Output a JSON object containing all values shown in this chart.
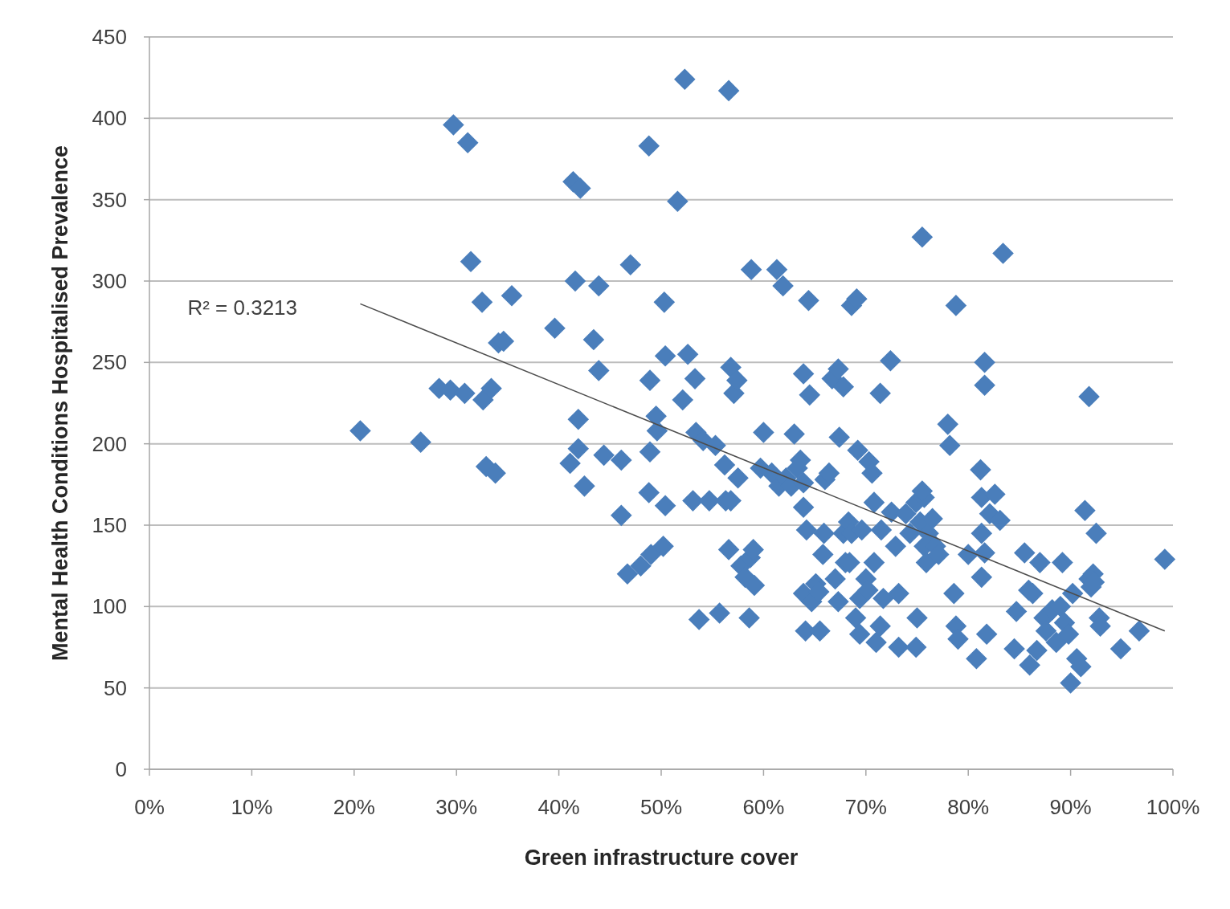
{
  "chart_data": {
    "type": "scatter",
    "xlabel": "Green infrastructure cover",
    "ylabel": "Mental Health Conditions Hospitalised Prevalence",
    "xlim": [
      0,
      100
    ],
    "ylim": [
      0,
      450
    ],
    "xticks": [
      {
        "value": 0,
        "label": "0%"
      },
      {
        "value": 10,
        "label": "10%"
      },
      {
        "value": 20,
        "label": "20%"
      },
      {
        "value": 30,
        "label": "30%"
      },
      {
        "value": 40,
        "label": "40%"
      },
      {
        "value": 50,
        "label": "50%"
      },
      {
        "value": 60,
        "label": "60%"
      },
      {
        "value": 70,
        "label": "70%"
      },
      {
        "value": 80,
        "label": "80%"
      },
      {
        "value": 90,
        "label": "90%"
      },
      {
        "value": 100,
        "label": "100%"
      }
    ],
    "yticks": [
      0,
      50,
      100,
      150,
      200,
      250,
      300,
      350,
      400,
      450
    ],
    "grid": "y",
    "marker": "diamond",
    "annotations": [
      "R² = 0.3213"
    ],
    "series": [
      {
        "color": "#4a7ebb",
        "x": [
          20.6,
          26.5,
          28.3,
          29.4,
          29.7,
          30.8,
          31.1,
          31.4,
          32.5,
          32.6,
          32.9,
          33.4,
          33.8,
          34.1,
          34.6,
          35.4,
          39.6,
          41.4,
          41.6,
          42.1,
          41.1,
          41.9,
          41.9,
          42.5,
          43.4,
          43.9,
          43.9,
          44.4,
          46.1,
          46.1,
          47.0,
          46.7,
          48.0,
          48.8,
          48.9,
          48.9,
          48.8,
          49.0,
          49.5,
          49.6,
          50.2,
          50.3,
          50.4,
          50.4,
          51.6,
          52.1,
          52.3,
          52.6,
          53.3,
          53.1,
          53.4,
          53.7,
          54.1,
          54.7,
          55.3,
          55.7,
          56.2,
          56.3,
          56.6,
          56.8,
          56.6,
          56.8,
          57.1,
          57.4,
          57.5,
          57.8,
          58.2,
          58.6,
          58.7,
          59.0,
          59.1,
          58.8,
          59.7,
          60.0,
          60.8,
          61.3,
          61.5,
          61.9,
          62.2,
          62.7,
          63.0,
          63.3,
          63.6,
          63.9,
          64.4,
          64.5,
          63.9,
          63.9,
          64.2,
          63.9,
          64.1,
          64.7,
          65.1,
          65.4,
          65.8,
          65.9,
          65.5,
          66.0,
          66.4,
          66.7,
          67.0,
          67.3,
          67.3,
          67.8,
          67.4,
          67.8,
          68.0,
          68.3,
          68.4,
          68.6,
          68.6,
          69.1,
          69.0,
          69.2,
          69.4,
          69.4,
          69.6,
          70.0,
          70.2,
          70.3,
          70.6,
          70.8,
          70.8,
          71.0,
          71.4,
          71.5,
          71.7,
          71.4,
          72.4,
          72.5,
          72.9,
          73.2,
          73.2,
          73.9,
          74.3,
          74.9,
          75.3,
          75.7,
          75.7,
          74.9,
          75.0,
          75.5,
          75.5,
          75.9,
          76.1,
          76.5,
          76.8,
          77.1,
          78.0,
          78.2,
          78.6,
          78.8,
          78.8,
          79.0,
          80.0,
          80.8,
          81.2,
          81.6,
          81.6,
          81.3,
          81.3,
          81.6,
          81.3,
          81.8,
          82.1,
          82.6,
          83.1,
          83.4,
          84.5,
          84.7,
          85.5,
          85.9,
          86.0,
          86.3,
          86.7,
          87.0,
          87.4,
          87.6,
          88.2,
          88.6,
          89.0,
          89.2,
          89.4,
          89.8,
          90.0,
          90.2,
          90.6,
          91.0,
          91.4,
          91.8,
          91.8,
          92.0,
          92.2,
          92.3,
          92.5,
          92.8,
          92.9,
          94.9,
          96.7,
          99.2
        ],
        "values": [
          208,
          201,
          234,
          233,
          396,
          231,
          385,
          312,
          287,
          227,
          186,
          234,
          182,
          262,
          263,
          291,
          271,
          361,
          300,
          357,
          188,
          215,
          197,
          174,
          264,
          297,
          245,
          193,
          190,
          156,
          310,
          120,
          125,
          383,
          239,
          195,
          170,
          132,
          217,
          208,
          137,
          287,
          254,
          162,
          349,
          227,
          424,
          255,
          240,
          165,
          207,
          92,
          202,
          165,
          199,
          96,
          187,
          165,
          417,
          165,
          135,
          247,
          231,
          239,
          179,
          125,
          118,
          93,
          130,
          135,
          113,
          307,
          185,
          207,
          182,
          307,
          174,
          297,
          179,
          174,
          206,
          185,
          190,
          243,
          288,
          230,
          176,
          161,
          147,
          108,
          85,
          103,
          114,
          109,
          132,
          145,
          85,
          178,
          182,
          240,
          117,
          246,
          103,
          235,
          204,
          145,
          127,
          152,
          127,
          145,
          285,
          289,
          93,
          196,
          105,
          83,
          147,
          117,
          110,
          189,
          182,
          164,
          127,
          78,
          231,
          147,
          105,
          88,
          251,
          158,
          137,
          108,
          75,
          157,
          145,
          164,
          152,
          167,
          137,
          75,
          93,
          327,
          171,
          127,
          145,
          154,
          137,
          132,
          212,
          199,
          108,
          285,
          88,
          80,
          132,
          68,
          184,
          250,
          236,
          167,
          145,
          133,
          118,
          83,
          157,
          169,
          153,
          317,
          74,
          97,
          133,
          110,
          64,
          108,
          73,
          127,
          93,
          85,
          98,
          78,
          100,
          127,
          90,
          83,
          53,
          108,
          68,
          63,
          159,
          229,
          117,
          112,
          120,
          115,
          145,
          93,
          88,
          74,
          85,
          129
        ]
      },
      {
        "type": "line",
        "color": "#4d4d4d",
        "x": [
          20.6,
          99.2
        ],
        "values": [
          286,
          85
        ],
        "marker": "none"
      }
    ]
  }
}
